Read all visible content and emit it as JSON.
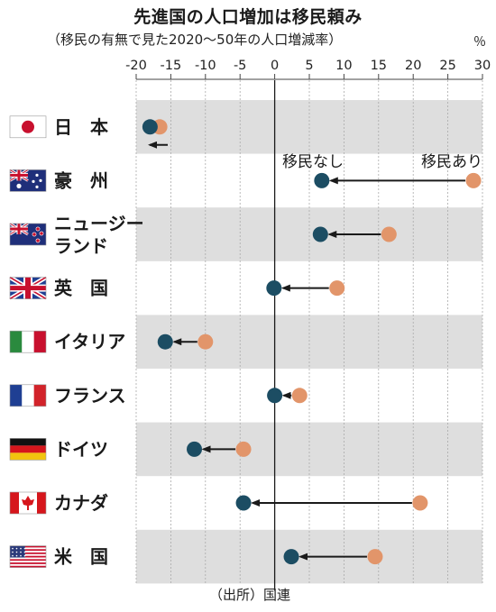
{
  "header": {
    "title": "先進国の人口増加は移民頼み",
    "subtitle": "（移民の有無で見た2020〜50年の人口増減率）",
    "unit": "％"
  },
  "footer": {
    "source": "（出所）国連"
  },
  "legend": {
    "without_migration": "移民なし",
    "with_migration": "移民あり"
  },
  "colors": {
    "without_migration": "#1c4d63",
    "with_migration": "#e2956a",
    "band": "#dedede",
    "arrow": "#1a1a1a",
    "zero_line": "#1a1a1a"
  },
  "chart_data": {
    "type": "scatter",
    "title": "先進国の人口増加は移民頼み",
    "subtitle": "（移民の有無で見た2020〜50年の人口増減率）",
    "x_unit": "％",
    "xlim": [
      -20,
      30
    ],
    "xticks": [
      "-20",
      "-15",
      "-10",
      "-5",
      "0",
      "5",
      "10",
      "15",
      "20",
      "25",
      "30"
    ],
    "xtick_values": [
      -20,
      -15,
      -10,
      -5,
      0,
      5,
      10,
      15,
      20,
      25,
      30
    ],
    "axis_position": "top",
    "categories": [
      {
        "label": "日　本",
        "flag": "japan-flag"
      },
      {
        "label": "豪　州",
        "flag": "australia-flag"
      },
      {
        "label": [
          "ニュージー",
          "ランド"
        ],
        "flag": "new-zealand-flag"
      },
      {
        "label": "英　国",
        "flag": "uk-flag"
      },
      {
        "label": "イタリア",
        "flag": "italy-flag"
      },
      {
        "label": "フランス",
        "flag": "france-flag"
      },
      {
        "label": "ドイツ",
        "flag": "germany-flag"
      },
      {
        "label": "カナダ",
        "flag": "canada-flag"
      },
      {
        "label": "米　国",
        "flag": "usa-flag"
      }
    ],
    "series": [
      {
        "name": "移民なし",
        "values": [
          -18.0,
          6.8,
          6.6,
          -0.1,
          -15.8,
          0.0,
          -11.6,
          -4.5,
          2.4
        ]
      },
      {
        "name": "移民あり",
        "values": [
          -16.6,
          28.7,
          16.5,
          9.0,
          -10.0,
          3.6,
          -4.5,
          21.0,
          14.5
        ]
      }
    ],
    "legend_placement": "annotation above Australia row"
  }
}
